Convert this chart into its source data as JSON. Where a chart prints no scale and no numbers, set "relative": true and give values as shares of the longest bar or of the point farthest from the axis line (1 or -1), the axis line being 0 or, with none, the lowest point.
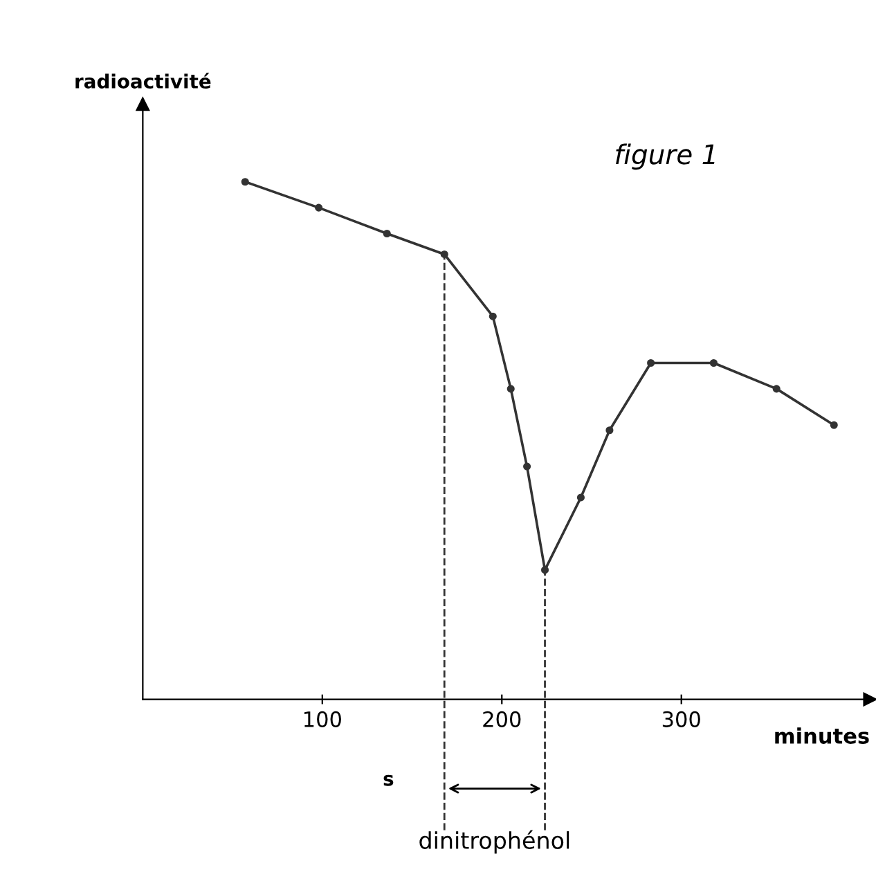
{
  "chart_data": {
    "type": "line",
    "title": "figure 1",
    "xlabel": "minutes",
    "ylabel": "radioactivité",
    "relative": true,
    "x": [
      57,
      98,
      136,
      168,
      195,
      205,
      214,
      224,
      244,
      260,
      283,
      318,
      353,
      385
    ],
    "series": [
      {
        "color": "#333333",
        "values": [
          1,
          0.95,
          0.9,
          0.86,
          0.74,
          0.6,
          0.45,
          0.25,
          0.39,
          0.52,
          0.65,
          0.65,
          0.6,
          0.53
        ]
      }
    ],
    "xlim": [
      0,
      405
    ],
    "xticks": [
      100,
      200,
      300
    ],
    "marker": "circle",
    "line_style": "solid",
    "grid": false,
    "legend": false,
    "ref_lines": [
      {
        "axis": "x",
        "value": 168,
        "label": null,
        "color": "#333333",
        "line_style": "dashed"
      },
      {
        "axis": "x",
        "value": 224,
        "label": null,
        "color": "#333333",
        "line_style": "dashed"
      }
    ],
    "annotations": [
      "s",
      "dinitrophénol"
    ]
  }
}
